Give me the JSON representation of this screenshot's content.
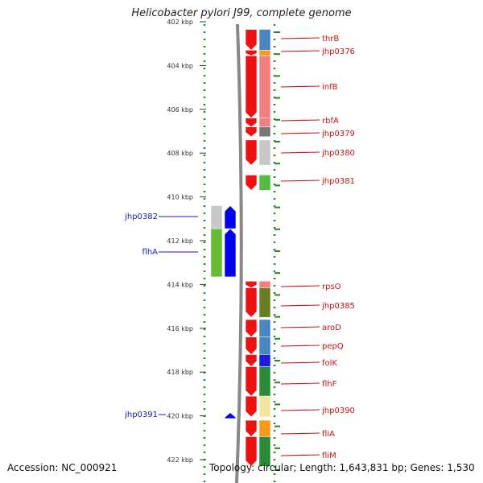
{
  "title": "Helicobacter pylori J99, complete genome",
  "accession_text": "Accession: NC_000921",
  "topology_text": "Topology: circular; Length: 1,643,831 bp; Genes: 1,530",
  "colors": {
    "forward_label": "#cc1111",
    "reverse_label": "#1a1aaa",
    "forward_gene": "#ee1111",
    "reverse_gene": "#0000ee",
    "dotted_track": "#228822",
    "backbone": "#888888"
  },
  "axis": {
    "unit": "kbp",
    "ticks": [
      {
        "label": "402 kbp",
        "kbp": 402
      },
      {
        "label": "404 kbp",
        "kbp": 404
      },
      {
        "label": "406 kbp",
        "kbp": 406
      },
      {
        "label": "408 kbp",
        "kbp": 408
      },
      {
        "label": "410 kbp",
        "kbp": 410
      },
      {
        "label": "412 kbp",
        "kbp": 412
      },
      {
        "label": "414 kbp",
        "kbp": 414
      },
      {
        "label": "416 kbp",
        "kbp": 416
      },
      {
        "label": "418 kbp",
        "kbp": 418
      },
      {
        "label": "420 kbp",
        "kbp": 420
      },
      {
        "label": "422 kbp",
        "kbp": 422
      }
    ]
  },
  "forward_genes": [
    {
      "name": "thrB",
      "start": 402.35,
      "end": 403.3,
      "cog_color": "#4a86c0"
    },
    {
      "name": "jhp0376",
      "start": 403.3,
      "end": 403.55,
      "cog_color": "#f59a1a"
    },
    {
      "name": "infB",
      "start": 403.55,
      "end": 406.4,
      "cog_color": "#f08080"
    },
    {
      "name": "rbfA",
      "start": 406.4,
      "end": 406.8,
      "cog_color": "#f08080"
    },
    {
      "name": "jhp0379",
      "start": 406.8,
      "end": 407.25,
      "cog_color": "#777777"
    },
    {
      "name": "jhp0380",
      "start": 407.4,
      "end": 408.55,
      "cog_color": "#c8c8c8"
    },
    {
      "name": "jhp0381",
      "start": 409.0,
      "end": 409.7,
      "cog_color": "#55bb44"
    },
    {
      "name": "rpsO",
      "start": 413.85,
      "end": 414.15,
      "cog_color": "#f08080"
    },
    {
      "name": "jhp0385",
      "start": 414.15,
      "end": 415.5,
      "cog_color": "#6b7d22"
    },
    {
      "name": "aroD",
      "start": 415.6,
      "end": 416.4,
      "cog_color": "#4a86c0"
    },
    {
      "name": "pepQ",
      "start": 416.4,
      "end": 417.2,
      "cog_color": "#4a86c0"
    },
    {
      "name": "folK",
      "start": 417.2,
      "end": 417.75,
      "cog_color": "#1a1ae0"
    },
    {
      "name": "flhF",
      "start": 417.75,
      "end": 419.1,
      "cog_color": "#2a8a3a"
    },
    {
      "name": "jhp0390",
      "start": 419.1,
      "end": 420.05,
      "cog_color": "#f0e6a0"
    },
    {
      "name": "fliA",
      "start": 420.2,
      "end": 420.95,
      "cog_color": "#f59a1a"
    },
    {
      "name": "fliM",
      "start": 420.95,
      "end": 422.3,
      "cog_color": "#2a8a3a"
    }
  ],
  "reverse_genes": [
    {
      "name": "jhp0382",
      "start": 410.4,
      "end": 411.45,
      "cog_color": "#c8c8c8"
    },
    {
      "name": "flhA",
      "start": 411.45,
      "end": 413.65,
      "cog_color": "#66bb33"
    },
    {
      "name": "jhp0391",
      "start": 420.0,
      "end": 420.12,
      "cog_color": "#1a1ae0"
    }
  ],
  "forward_labels": [
    "thrB",
    "jhp0376",
    "infB",
    "rbfA",
    "jhp0379",
    "jhp0380",
    "jhp0381",
    "rpsO",
    "jhp0385",
    "aroD",
    "pepQ",
    "folK",
    "flhF",
    "jhp0390",
    "fliA",
    "fliM"
  ],
  "reverse_labels": [
    "jhp0382",
    "flhA",
    "jhp0391"
  ]
}
